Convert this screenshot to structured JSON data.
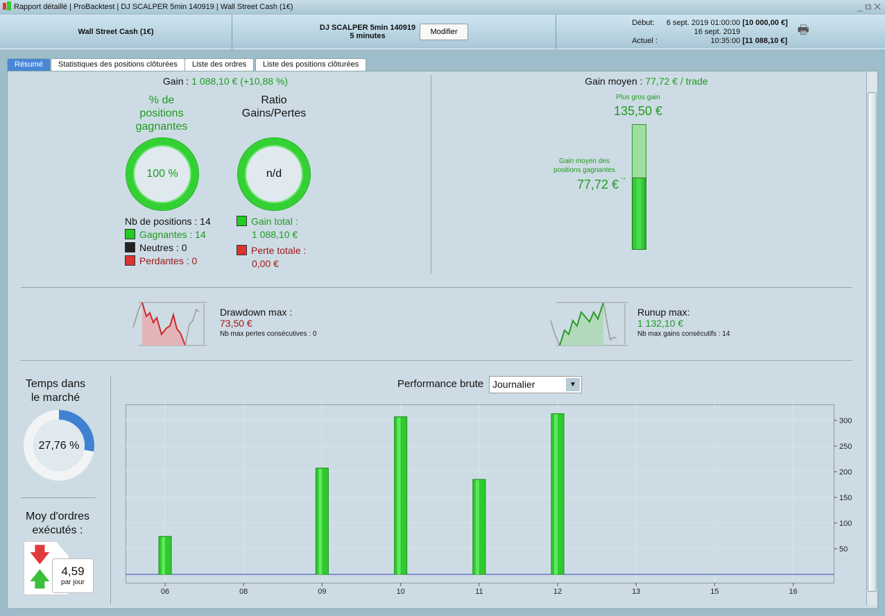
{
  "titlebar": {
    "items": [
      "Rapport détaillé",
      "ProBacktest",
      "DJ SCALPER 5min 140919",
      "Wall Street Cash (1€)"
    ]
  },
  "header": {
    "instrument": "Wall Street Cash (1€)",
    "strategy": "DJ SCALPER 5min 140919",
    "timeframe": "5 minutes",
    "modify": "Modifier",
    "start_label": "Début:",
    "start_date": "6 sept. 2019 01:00:00",
    "start_value": "[10 000,00 €]",
    "current_label": "Actuel :",
    "current_date": "16 sept. 2019 10:35:00",
    "current_value": "[11 088,10 €]"
  },
  "tabs": [
    "Résumé",
    "Statistiques des positions clôturées",
    "Liste des ordres",
    "Liste des positions clôturées"
  ],
  "summary": {
    "gain_label": "Gain :",
    "gain_value": "1 088,10 € (+10,88 %)",
    "win_pct_title": "% de positions gagnantes",
    "win_pct": "100 %",
    "ratio_title": "Ratio Gains/Pertes",
    "ratio": "n/d",
    "nb_positions": "Nb de positions : 14",
    "winners": "Gagnantes : 14",
    "neutral": "Neutres : 0",
    "losers": "Perdantes : 0",
    "total_gain_label": "Gain total :",
    "total_gain": "1 088,10 €",
    "total_loss_label": "Perte totale :",
    "total_loss": "0,00 €",
    "avg_gain_label": "Gain moyen :",
    "avg_gain": "77,72 € / trade",
    "biggest_label": "Plus gros gain",
    "biggest": "135,50 €",
    "avg_win_label": "Gain moyen des positions gagnantes",
    "avg_win": "77,72 €",
    "drawdown_label": "Drawdown max :",
    "drawdown": "73,50 €",
    "max_losses": "Nb max pertes consécutives : 0",
    "runup_label": "Runup max:",
    "runup": "1 132,10 €",
    "max_gains": "Nb max gains consécutifs : 14",
    "time_label": "Temps dans le marché",
    "time_pct": "27,76 %",
    "time_fraction": 0.2776,
    "orders_label": "Moy d'ordres exécutés :",
    "orders": "4,59",
    "orders_unit": "par jour",
    "perf_label": "Performance brute",
    "perf_select": "Journalier"
  },
  "colors": {
    "green": "#22c422",
    "red": "#d03030",
    "accent": "#4a86d6"
  },
  "chart_data": {
    "type": "bar",
    "categories": [
      "06",
      "08",
      "09",
      "10",
      "11",
      "12",
      "13",
      "15",
      "16"
    ],
    "values": [
      74,
      0,
      207,
      307,
      185,
      313,
      0,
      0,
      0
    ],
    "yticks": [
      50,
      100,
      150,
      200,
      250,
      300
    ],
    "ylim": [
      0,
      345
    ],
    "title": "Performance brute",
    "xlabel": "",
    "ylabel": ""
  }
}
